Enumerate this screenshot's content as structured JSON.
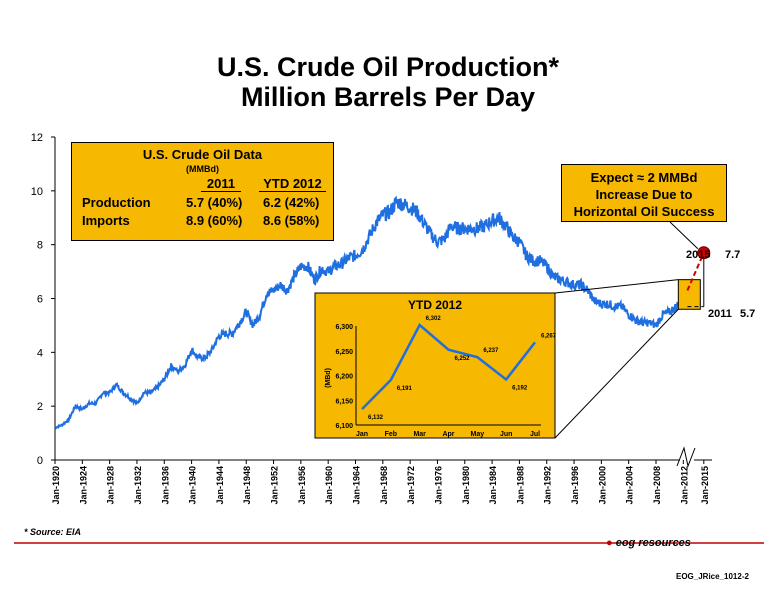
{
  "page": {
    "title_line1": "U.S. Crude Oil Production*",
    "title_line2": "Million Barrels Per Day",
    "source": "* Source: EIA",
    "footer": "EOG_JRice_1012-2",
    "logo_text": "eog resources"
  },
  "data_box": {
    "heading": "U.S. Crude Oil Data",
    "unit": "(MMBd)",
    "col1": "2011",
    "col2": "YTD 2012",
    "rows": [
      {
        "label": "Production",
        "v2011": "5.7 (40%)",
        "v2012": "6.2 (42%)"
      },
      {
        "label": "Imports",
        "v2011": "8.9 (60%)",
        "v2012": "8.6 (58%)"
      }
    ]
  },
  "callout": {
    "line1": "Expect ≈ 2 MMBd",
    "line2": "Increase Due to",
    "line3": "Horizontal Oil Success"
  },
  "markers": {
    "m2015_label": "2015",
    "m2015_value": "7.7",
    "m2011_label": "2011",
    "m2011_value": "5.7"
  },
  "colors": {
    "line": "#1f6fe0",
    "box": "#f6b800",
    "projection": "#d00000",
    "footer_rule": "#c00000"
  },
  "chart_data": [
    {
      "type": "line",
      "title": "U.S. Crude Oil Production*",
      "subtitle": "Million Barrels Per Day",
      "xlabel": "",
      "ylabel": "",
      "ylim": [
        0,
        12
      ],
      "yticks": [
        "0",
        "2",
        "4",
        "6",
        "8",
        "10",
        "12"
      ],
      "xticks": [
        "Jan-1920",
        "Jan-1924",
        "Jan-1928",
        "Jan-1932",
        "Jan-1936",
        "Jan-1940",
        "Jan-1944",
        "Jan-1948",
        "Jan-1952",
        "Jan-1956",
        "Jan-1960",
        "Jan-1964",
        "Jan-1968",
        "Jan-1972",
        "Jan-1976",
        "Jan-1980",
        "Jan-1984",
        "Jan-1988",
        "Jan-1992",
        "Jan-1996",
        "Jan-2000",
        "Jan-2004",
        "Jan-2008",
        "Jan-2012",
        "Jan-2015"
      ],
      "grid": false,
      "series": [
        {
          "x": [
            1920,
            1921,
            1922,
            1923,
            1924,
            1925,
            1926,
            1927,
            1928,
            1929,
            1930,
            1931,
            1932,
            1933,
            1934,
            1935,
            1936,
            1937,
            1938,
            1939,
            1940,
            1941,
            1942,
            1943,
            1944,
            1945,
            1946,
            1947,
            1948,
            1949,
            1950,
            1951,
            1952,
            1953,
            1954,
            1955,
            1956,
            1957,
            1958,
            1959,
            1960,
            1961,
            1962,
            1963,
            1964,
            1965,
            1966,
            1967,
            1968,
            1969,
            1970,
            1971,
            1972,
            1973,
            1974,
            1975,
            1976,
            1977,
            1978,
            1979,
            1980,
            1981,
            1982,
            1983,
            1984,
            1985,
            1986,
            1987,
            1988,
            1989,
            1990,
            1991,
            1992,
            1993,
            1994,
            1995,
            1996,
            1997,
            1998,
            1999,
            2000,
            2001,
            2002,
            2003,
            2004,
            2005,
            2006,
            2007,
            2008,
            2009,
            2010,
            2011,
            2012.5
          ],
          "values": [
            1.2,
            1.3,
            1.5,
            2.0,
            1.9,
            2.1,
            2.1,
            2.5,
            2.5,
            2.8,
            2.5,
            2.3,
            2.1,
            2.5,
            2.5,
            2.7,
            3.0,
            3.5,
            3.3,
            3.5,
            4.1,
            3.8,
            3.8,
            4.1,
            4.6,
            4.7,
            4.7,
            5.1,
            5.5,
            5.0,
            5.4,
            6.2,
            6.3,
            6.5,
            6.3,
            6.8,
            7.2,
            7.2,
            6.7,
            7.1,
            7.0,
            7.2,
            7.3,
            7.5,
            7.6,
            7.8,
            8.3,
            8.8,
            9.1,
            9.2,
            9.6,
            9.5,
            9.4,
            9.2,
            8.8,
            8.4,
            8.1,
            8.2,
            8.7,
            8.6,
            8.6,
            8.6,
            8.6,
            8.7,
            8.9,
            9.0,
            8.7,
            8.3,
            8.1,
            7.6,
            7.4,
            7.4,
            7.2,
            6.8,
            6.7,
            6.6,
            6.5,
            6.5,
            6.3,
            5.9,
            5.8,
            5.8,
            5.7,
            5.7,
            5.4,
            5.2,
            5.1,
            5.1,
            5.0,
            5.4,
            5.5,
            5.7,
            6.3
          ]
        }
      ],
      "annotations": [
        {
          "label": "2011",
          "x": 2011,
          "y": 5.7
        },
        {
          "label": "2015",
          "x": 2015,
          "y": 7.7
        }
      ]
    },
    {
      "type": "line",
      "title": "YTD 2012",
      "ylabel": "(MBd)",
      "categories": [
        "Jan",
        "Feb",
        "Mar",
        "Apr",
        "May",
        "Jun",
        "Jul"
      ],
      "values": [
        6132,
        6191,
        6302,
        6252,
        6237,
        6192,
        6267
      ],
      "data_labels": [
        "6,132",
        "6,191",
        "6,302",
        "6,252",
        "6,237",
        "6,192",
        "6,267"
      ],
      "yticks": [
        "6,100",
        "6,150",
        "6,200",
        "6,250",
        "6,300"
      ],
      "ylim": [
        6100,
        6300
      ]
    }
  ]
}
